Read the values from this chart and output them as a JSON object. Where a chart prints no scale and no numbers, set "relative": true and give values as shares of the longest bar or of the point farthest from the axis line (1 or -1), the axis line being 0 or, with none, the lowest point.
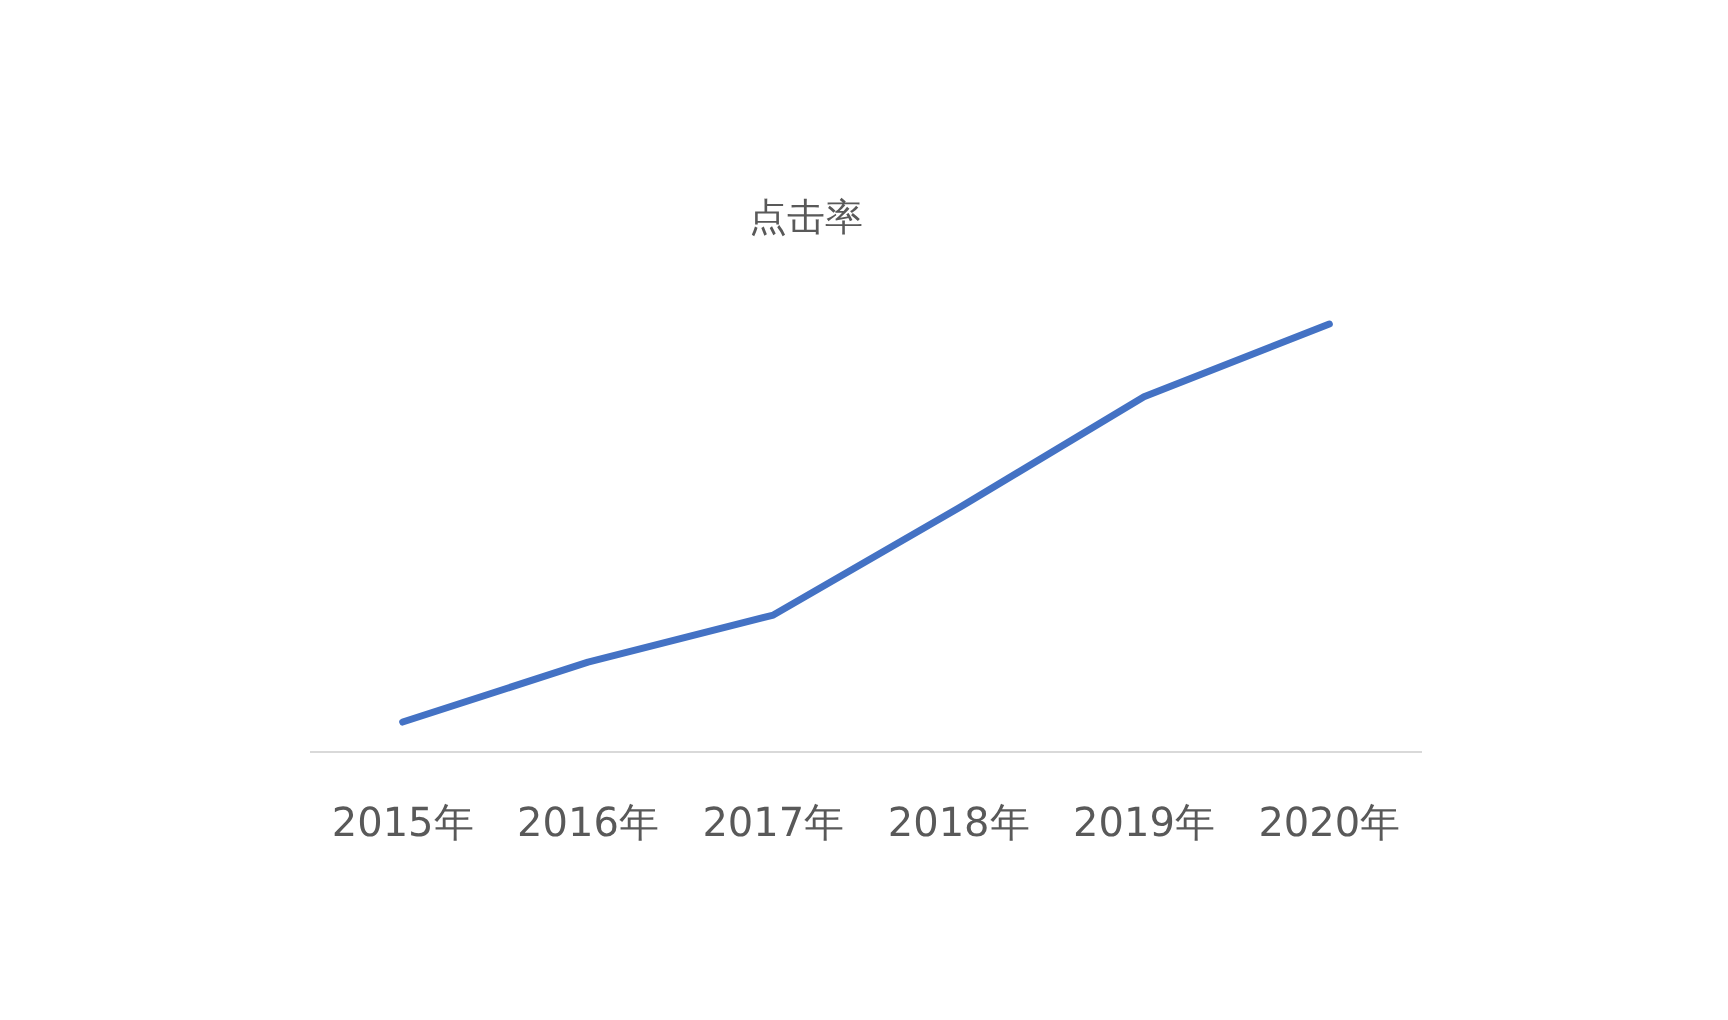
{
  "chart_data": {
    "type": "line",
    "title": "点击率",
    "relative": true,
    "categories": [
      "2015年",
      "2016年",
      "2017年",
      "2018年",
      "2019年",
      "2020年"
    ],
    "series": [
      {
        "color": "#4472c4",
        "values": [
          0.07,
          0.21,
          0.32,
          0.57,
          0.83,
          1
        ]
      }
    ]
  }
}
